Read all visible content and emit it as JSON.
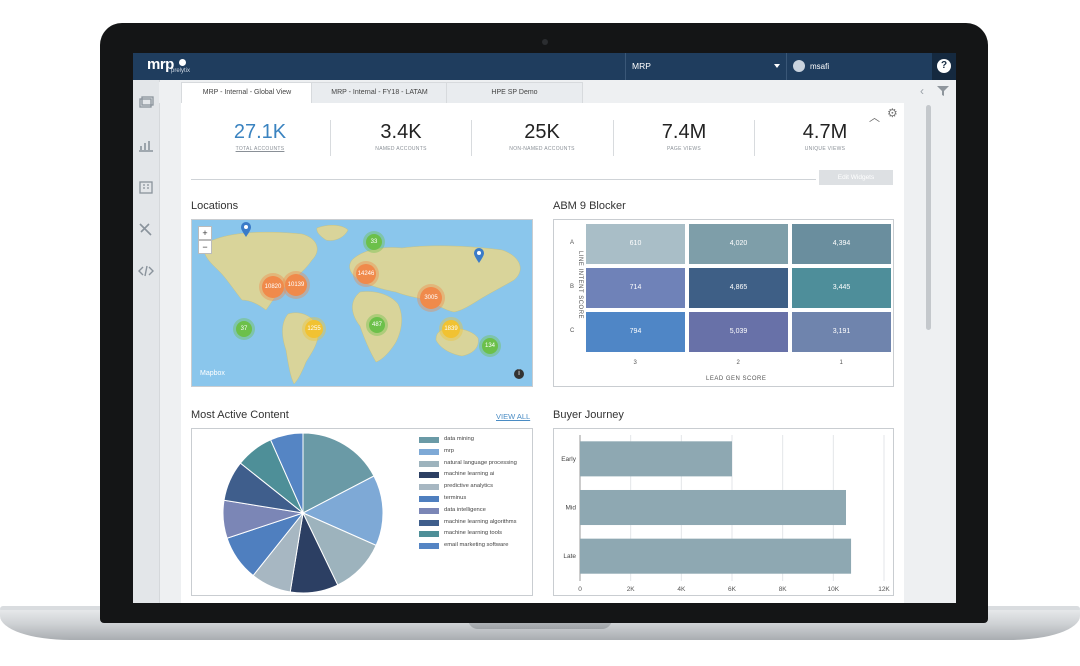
{
  "app": {
    "logo": "mrp",
    "logo_sub": "prelytix"
  },
  "topbar": {
    "org": "MRP",
    "user": "msafi",
    "help": "?"
  },
  "tabs": [
    {
      "label": "MRP - Internal - Global View",
      "active": true
    },
    {
      "label": "MRP - Internal - FY18 - LATAM",
      "active": false
    },
    {
      "label": "HPE SP Demo",
      "active": false
    }
  ],
  "stats": [
    {
      "value": "27.1K",
      "label": "TOTAL ACCOUNTS",
      "link": true
    },
    {
      "value": "3.4K",
      "label": "NAMED ACCOUNTS"
    },
    {
      "value": "25K",
      "label": "NON-NAMED ACCOUNTS"
    },
    {
      "value": "7.4M",
      "label": "PAGE VIEWS"
    },
    {
      "value": "4.7M",
      "label": "UNIQUE VIEWS"
    }
  ],
  "toolbar": {
    "edit_widgets": "Edit Widgets"
  },
  "locations": {
    "title": "Locations",
    "attribution": "Mapbox",
    "zoom_in": "+",
    "zoom_out": "−",
    "clusters": [
      {
        "label": "33",
        "color": "#6cc04a"
      },
      {
        "label": "14246",
        "color": "#f08a4b"
      },
      {
        "label": "10820",
        "color": "#f08a4b"
      },
      {
        "label": "10139",
        "color": "#f08a4b"
      },
      {
        "label": "3005",
        "color": "#f08a4b"
      },
      {
        "label": "37",
        "color": "#6cc04a"
      },
      {
        "label": "1255",
        "color": "#f1c232"
      },
      {
        "label": "487",
        "color": "#6cc04a"
      },
      {
        "label": "1839",
        "color": "#f1c232"
      },
      {
        "label": "134",
        "color": "#6cc04a"
      }
    ]
  },
  "blocker": {
    "title": "ABM 9 Blocker",
    "ylabel": "LINE INTENT SCORE",
    "xlabel": "LEAD GEN SCORE",
    "rows": [
      "A",
      "B",
      "C"
    ],
    "cols": [
      "3",
      "2",
      "1"
    ],
    "cells": [
      [
        {
          "v": "610",
          "c": "#a9bec7"
        },
        {
          "v": "4,020",
          "c": "#7e9ea9"
        },
        {
          "v": "4,394",
          "c": "#6a8e9e"
        }
      ],
      [
        {
          "v": "714",
          "c": "#6f82b8"
        },
        {
          "v": "4,865",
          "c": "#3e5f86"
        },
        {
          "v": "3,445",
          "c": "#4e8e9a"
        }
      ],
      [
        {
          "v": "794",
          "c": "#4f86c6"
        },
        {
          "v": "5,039",
          "c": "#6871a8"
        },
        {
          "v": "3,191",
          "c": "#6f84ad"
        }
      ]
    ]
  },
  "content": {
    "title": "Most Active Content",
    "view_all": "VIEW ALL",
    "legend": [
      {
        "name": "data mining",
        "color": "#6a9aa6"
      },
      {
        "name": "mrp",
        "color": "#7ea9d6"
      },
      {
        "name": "natural language processing",
        "color": "#9db3bd"
      },
      {
        "name": "machine learning ai",
        "color": "#2c3f63"
      },
      {
        "name": "predictive analytics",
        "color": "#a7b7c2"
      },
      {
        "name": "terminus",
        "color": "#4f7fbf"
      },
      {
        "name": "data intelligence",
        "color": "#7b86b6"
      },
      {
        "name": "machine learning algorithms",
        "color": "#3f5e8c"
      },
      {
        "name": "machine learning tools",
        "color": "#4e8f98"
      },
      {
        "name": "email marketing software",
        "color": "#5585c4"
      }
    ]
  },
  "journey": {
    "title": "Buyer Journey",
    "categories": [
      "Early",
      "Mid",
      "Late"
    ],
    "values": [
      6000,
      10500,
      10700
    ],
    "ticks": [
      "0",
      "2K",
      "4K",
      "6K",
      "8K",
      "10K",
      "12K"
    ],
    "max": 12000,
    "color": "#8ea8b2"
  },
  "chart_data": [
    {
      "type": "pie",
      "title": "Most Active Content",
      "categories": [
        "data mining",
        "mrp",
        "natural language processing",
        "machine learning ai",
        "predictive analytics",
        "terminus",
        "data intelligence",
        "machine learning algorithms",
        "machine learning tools",
        "email marketing software"
      ],
      "values": [
        17,
        14,
        11,
        9.5,
        8,
        9,
        7.5,
        8,
        7.5,
        6.5
      ]
    },
    {
      "type": "bar",
      "title": "Buyer Journey",
      "categories": [
        "Early",
        "Mid",
        "Late"
      ],
      "values": [
        6000,
        10500,
        10700
      ],
      "xlim": [
        0,
        12000
      ]
    },
    {
      "type": "heatmap",
      "title": "ABM 9 Blocker",
      "xlabel": "LEAD GEN SCORE",
      "ylabel": "LINE INTENT SCORE",
      "rows": [
        "A",
        "B",
        "C"
      ],
      "cols": [
        "3",
        "2",
        "1"
      ],
      "values": [
        [
          610,
          4020,
          4394
        ],
        [
          714,
          4865,
          3445
        ],
        [
          794,
          5039,
          3191
        ]
      ]
    }
  ]
}
